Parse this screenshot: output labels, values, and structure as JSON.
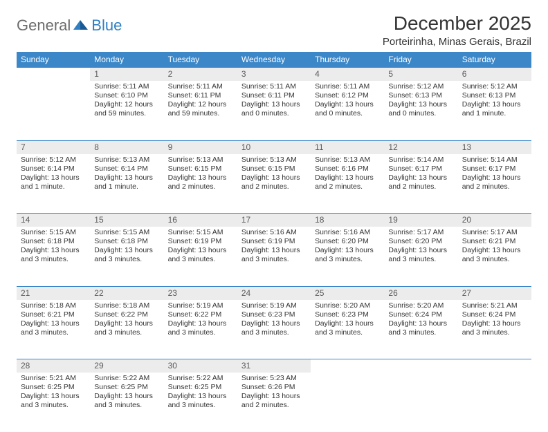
{
  "logo": {
    "part1": "General",
    "part2": "Blue"
  },
  "title": "December 2025",
  "location": "Porteirinha, Minas Gerais, Brazil",
  "colors": {
    "header_bg": "#3b87c8",
    "header_text": "#ffffff",
    "daynum_bg": "#ececec",
    "daynum_border": "#3b87c8",
    "body_text": "#333333",
    "logo_gray": "#6b6b6b",
    "logo_blue": "#2f7fc2"
  },
  "weekdays": [
    "Sunday",
    "Monday",
    "Tuesday",
    "Wednesday",
    "Thursday",
    "Friday",
    "Saturday"
  ],
  "weeks": [
    [
      null,
      {
        "n": "1",
        "sr": "Sunrise: 5:11 AM",
        "ss": "Sunset: 6:10 PM",
        "d1": "Daylight: 12 hours",
        "d2": "and 59 minutes."
      },
      {
        "n": "2",
        "sr": "Sunrise: 5:11 AM",
        "ss": "Sunset: 6:11 PM",
        "d1": "Daylight: 12 hours",
        "d2": "and 59 minutes."
      },
      {
        "n": "3",
        "sr": "Sunrise: 5:11 AM",
        "ss": "Sunset: 6:11 PM",
        "d1": "Daylight: 13 hours",
        "d2": "and 0 minutes."
      },
      {
        "n": "4",
        "sr": "Sunrise: 5:11 AM",
        "ss": "Sunset: 6:12 PM",
        "d1": "Daylight: 13 hours",
        "d2": "and 0 minutes."
      },
      {
        "n": "5",
        "sr": "Sunrise: 5:12 AM",
        "ss": "Sunset: 6:13 PM",
        "d1": "Daylight: 13 hours",
        "d2": "and 0 minutes."
      },
      {
        "n": "6",
        "sr": "Sunrise: 5:12 AM",
        "ss": "Sunset: 6:13 PM",
        "d1": "Daylight: 13 hours",
        "d2": "and 1 minute."
      }
    ],
    [
      {
        "n": "7",
        "sr": "Sunrise: 5:12 AM",
        "ss": "Sunset: 6:14 PM",
        "d1": "Daylight: 13 hours",
        "d2": "and 1 minute."
      },
      {
        "n": "8",
        "sr": "Sunrise: 5:13 AM",
        "ss": "Sunset: 6:14 PM",
        "d1": "Daylight: 13 hours",
        "d2": "and 1 minute."
      },
      {
        "n": "9",
        "sr": "Sunrise: 5:13 AM",
        "ss": "Sunset: 6:15 PM",
        "d1": "Daylight: 13 hours",
        "d2": "and 2 minutes."
      },
      {
        "n": "10",
        "sr": "Sunrise: 5:13 AM",
        "ss": "Sunset: 6:15 PM",
        "d1": "Daylight: 13 hours",
        "d2": "and 2 minutes."
      },
      {
        "n": "11",
        "sr": "Sunrise: 5:13 AM",
        "ss": "Sunset: 6:16 PM",
        "d1": "Daylight: 13 hours",
        "d2": "and 2 minutes."
      },
      {
        "n": "12",
        "sr": "Sunrise: 5:14 AM",
        "ss": "Sunset: 6:17 PM",
        "d1": "Daylight: 13 hours",
        "d2": "and 2 minutes."
      },
      {
        "n": "13",
        "sr": "Sunrise: 5:14 AM",
        "ss": "Sunset: 6:17 PM",
        "d1": "Daylight: 13 hours",
        "d2": "and 2 minutes."
      }
    ],
    [
      {
        "n": "14",
        "sr": "Sunrise: 5:15 AM",
        "ss": "Sunset: 6:18 PM",
        "d1": "Daylight: 13 hours",
        "d2": "and 3 minutes."
      },
      {
        "n": "15",
        "sr": "Sunrise: 5:15 AM",
        "ss": "Sunset: 6:18 PM",
        "d1": "Daylight: 13 hours",
        "d2": "and 3 minutes."
      },
      {
        "n": "16",
        "sr": "Sunrise: 5:15 AM",
        "ss": "Sunset: 6:19 PM",
        "d1": "Daylight: 13 hours",
        "d2": "and 3 minutes."
      },
      {
        "n": "17",
        "sr": "Sunrise: 5:16 AM",
        "ss": "Sunset: 6:19 PM",
        "d1": "Daylight: 13 hours",
        "d2": "and 3 minutes."
      },
      {
        "n": "18",
        "sr": "Sunrise: 5:16 AM",
        "ss": "Sunset: 6:20 PM",
        "d1": "Daylight: 13 hours",
        "d2": "and 3 minutes."
      },
      {
        "n": "19",
        "sr": "Sunrise: 5:17 AM",
        "ss": "Sunset: 6:20 PM",
        "d1": "Daylight: 13 hours",
        "d2": "and 3 minutes."
      },
      {
        "n": "20",
        "sr": "Sunrise: 5:17 AM",
        "ss": "Sunset: 6:21 PM",
        "d1": "Daylight: 13 hours",
        "d2": "and 3 minutes."
      }
    ],
    [
      {
        "n": "21",
        "sr": "Sunrise: 5:18 AM",
        "ss": "Sunset: 6:21 PM",
        "d1": "Daylight: 13 hours",
        "d2": "and 3 minutes."
      },
      {
        "n": "22",
        "sr": "Sunrise: 5:18 AM",
        "ss": "Sunset: 6:22 PM",
        "d1": "Daylight: 13 hours",
        "d2": "and 3 minutes."
      },
      {
        "n": "23",
        "sr": "Sunrise: 5:19 AM",
        "ss": "Sunset: 6:22 PM",
        "d1": "Daylight: 13 hours",
        "d2": "and 3 minutes."
      },
      {
        "n": "24",
        "sr": "Sunrise: 5:19 AM",
        "ss": "Sunset: 6:23 PM",
        "d1": "Daylight: 13 hours",
        "d2": "and 3 minutes."
      },
      {
        "n": "25",
        "sr": "Sunrise: 5:20 AM",
        "ss": "Sunset: 6:23 PM",
        "d1": "Daylight: 13 hours",
        "d2": "and 3 minutes."
      },
      {
        "n": "26",
        "sr": "Sunrise: 5:20 AM",
        "ss": "Sunset: 6:24 PM",
        "d1": "Daylight: 13 hours",
        "d2": "and 3 minutes."
      },
      {
        "n": "27",
        "sr": "Sunrise: 5:21 AM",
        "ss": "Sunset: 6:24 PM",
        "d1": "Daylight: 13 hours",
        "d2": "and 3 minutes."
      }
    ],
    [
      {
        "n": "28",
        "sr": "Sunrise: 5:21 AM",
        "ss": "Sunset: 6:25 PM",
        "d1": "Daylight: 13 hours",
        "d2": "and 3 minutes."
      },
      {
        "n": "29",
        "sr": "Sunrise: 5:22 AM",
        "ss": "Sunset: 6:25 PM",
        "d1": "Daylight: 13 hours",
        "d2": "and 3 minutes."
      },
      {
        "n": "30",
        "sr": "Sunrise: 5:22 AM",
        "ss": "Sunset: 6:25 PM",
        "d1": "Daylight: 13 hours",
        "d2": "and 3 minutes."
      },
      {
        "n": "31",
        "sr": "Sunrise: 5:23 AM",
        "ss": "Sunset: 6:26 PM",
        "d1": "Daylight: 13 hours",
        "d2": "and 2 minutes."
      },
      null,
      null,
      null
    ]
  ]
}
